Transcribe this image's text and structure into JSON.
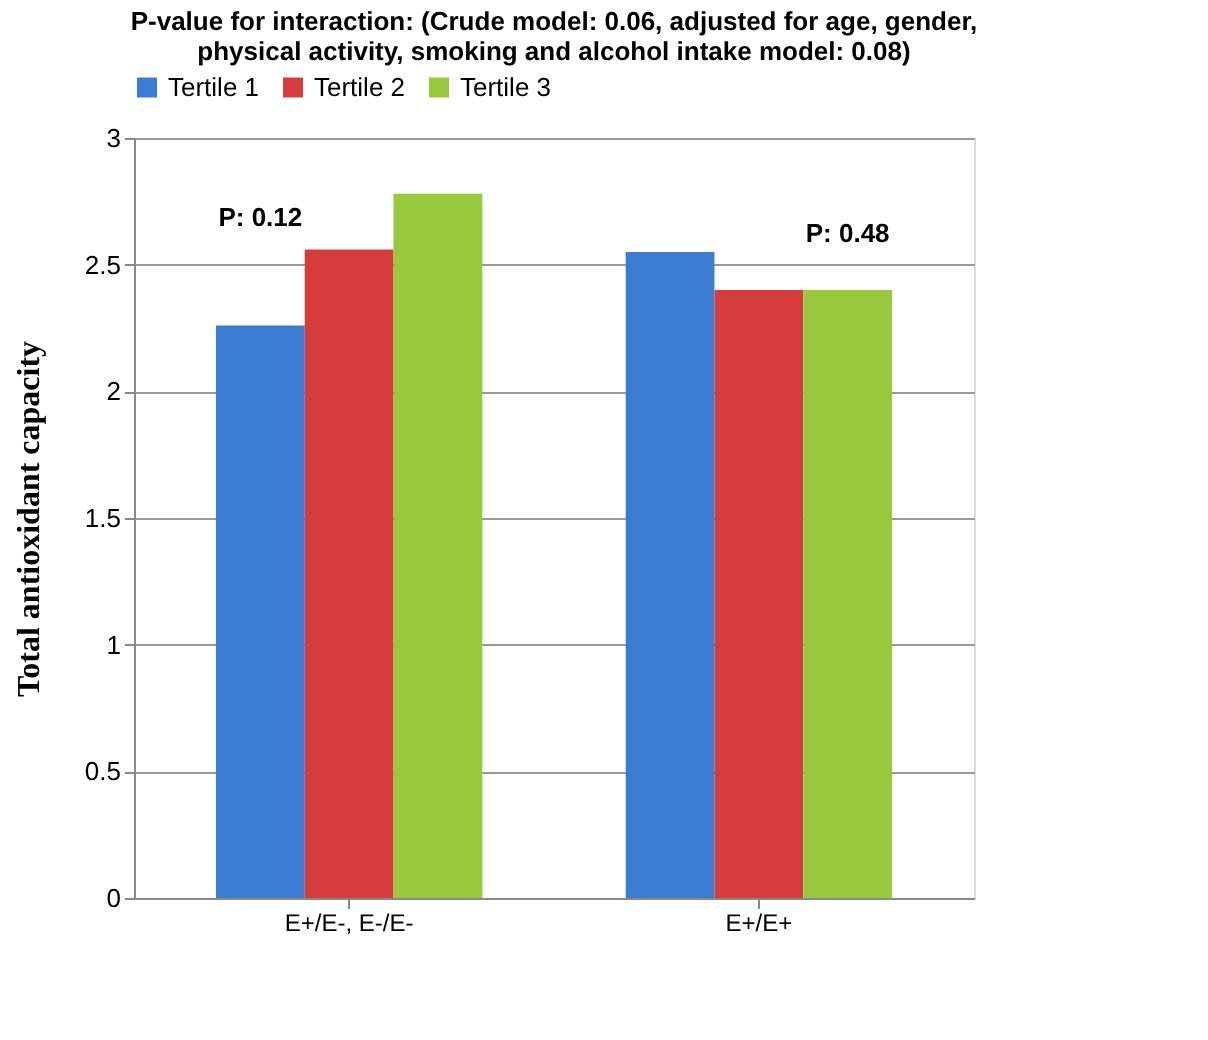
{
  "chart_data": {
    "type": "bar",
    "title": [
      "P-value for interaction: (Crude model: 0.06, adjusted for age, gender,",
      "physical activity, smoking and alcohol intake model: 0.08)"
    ],
    "ylabel": "Total antioxidant capacity",
    "categories": [
      "E+/E-, E-/E-",
      "E+/E+"
    ],
    "series": [
      {
        "name": "Tertile 1",
        "color": "#3c7dd4",
        "values": [
          2.26,
          2.55
        ]
      },
      {
        "name": "Tertile 2",
        "color": "#d63c3c",
        "values": [
          2.56,
          2.4
        ]
      },
      {
        "name": "Tertile 3",
        "color": "#98c93c",
        "values": [
          2.78,
          2.4
        ]
      }
    ],
    "annotations": [
      "P: 0.12",
      "P: 0.48"
    ],
    "ylim": [
      0,
      3
    ],
    "yticks": [
      0,
      0.5,
      1,
      1.5,
      2,
      2.5,
      3
    ],
    "grid": "y",
    "legend": "top"
  }
}
